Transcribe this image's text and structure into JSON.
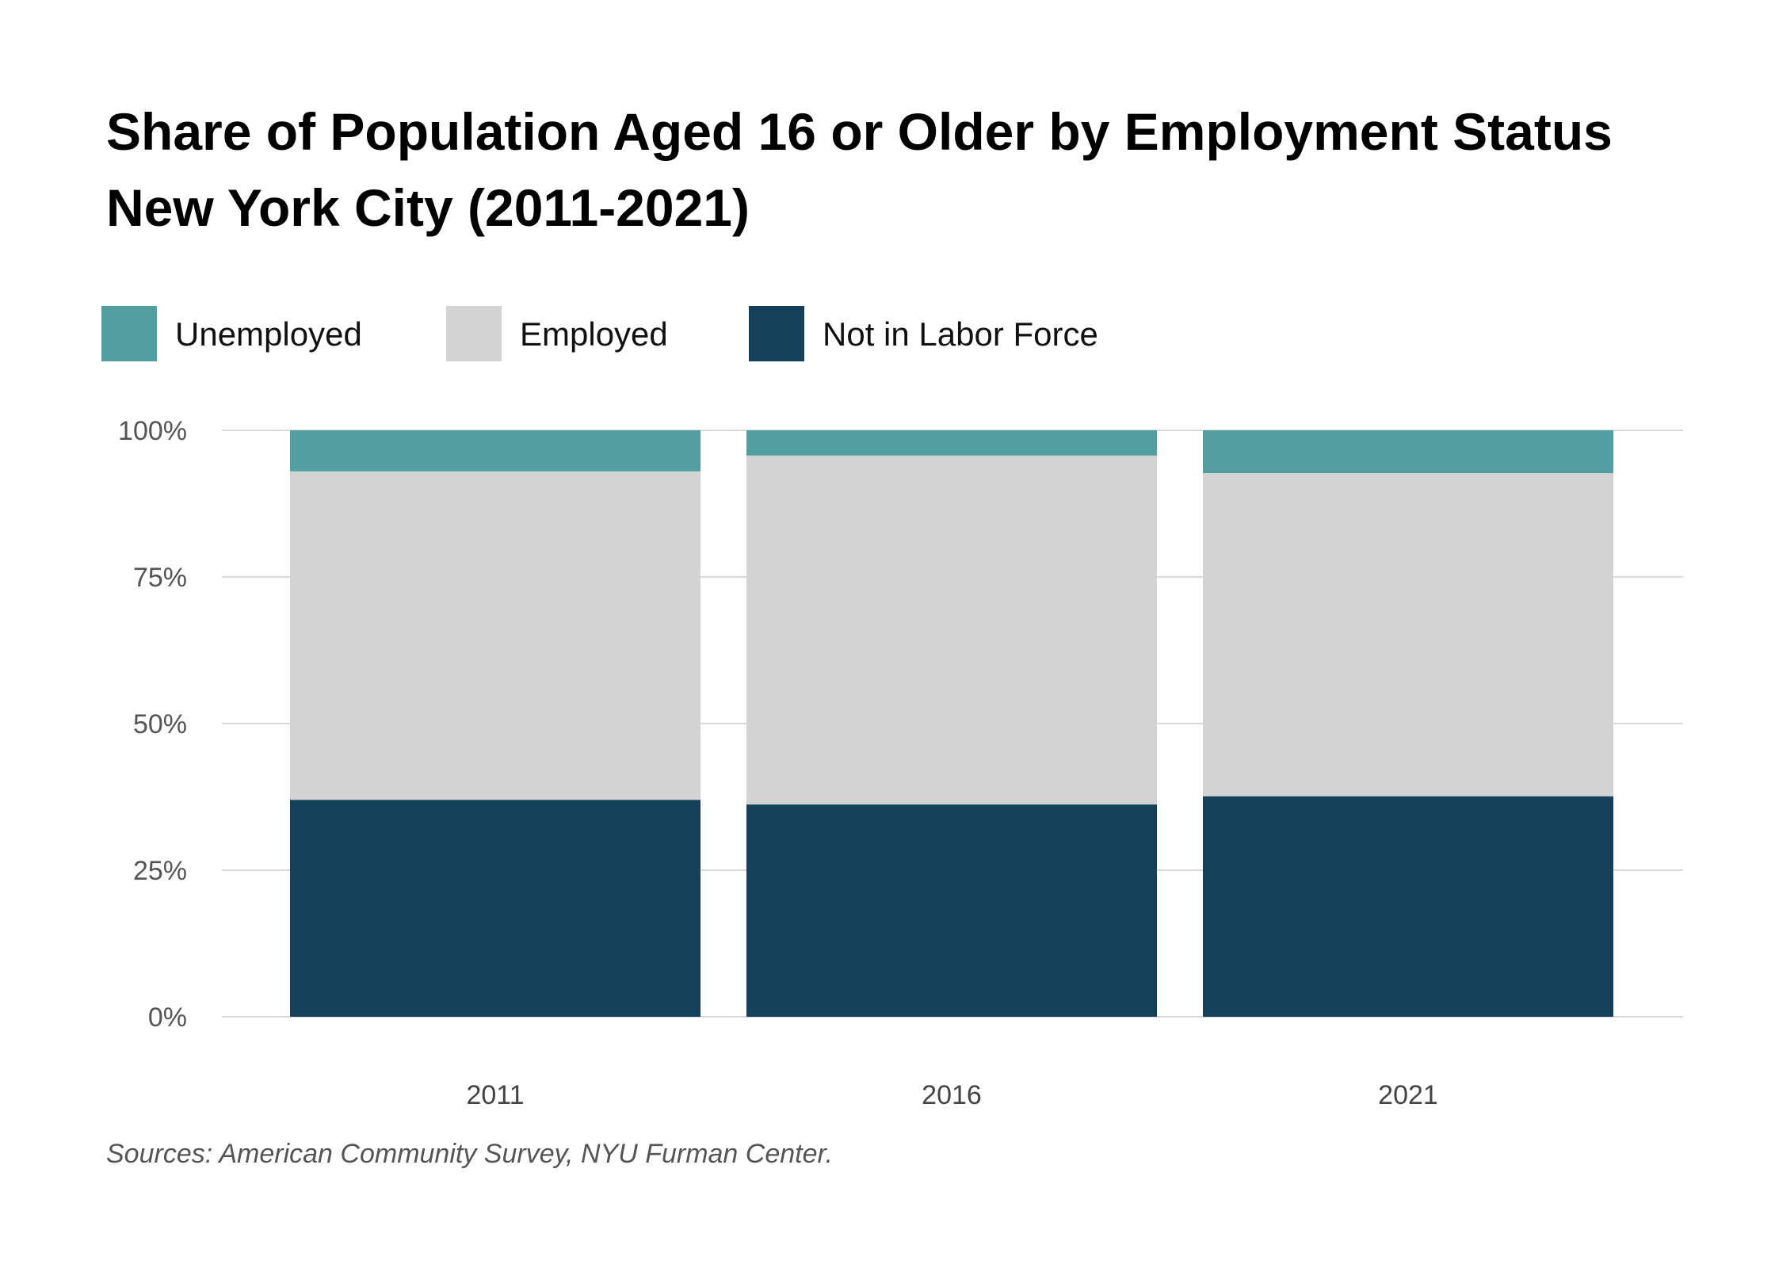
{
  "chart_data": {
    "type": "bar",
    "stacked": true,
    "title_lines": [
      "Share of Population Aged 16 or Older by Employment Status",
      "New York City (2011-2021)"
    ],
    "categories": [
      "2011",
      "2016",
      "2021"
    ],
    "series": [
      {
        "name": "Not in Labor Force",
        "color": "#15405a",
        "values": [
          37,
          36.2,
          37.6
        ]
      },
      {
        "name": "Employed",
        "color": "#d3d3d3",
        "values": [
          56,
          59.5,
          55.1
        ]
      },
      {
        "name": "Unemployed",
        "color": "#559e9f",
        "values": [
          7,
          4.3,
          7.3
        ]
      }
    ],
    "legend_order": [
      {
        "name": "Unemployed",
        "color": "#559e9f"
      },
      {
        "name": "Employed",
        "color": "#d3d3d3"
      },
      {
        "name": "Not in Labor Force",
        "color": "#15405a"
      }
    ],
    "y_ticks": [
      {
        "value": 0,
        "label": "0%"
      },
      {
        "value": 25,
        "label": "25%"
      },
      {
        "value": 50,
        "label": "50%"
      },
      {
        "value": 75,
        "label": "75%"
      },
      {
        "value": 100,
        "label": "100%"
      }
    ],
    "ylim": [
      0,
      100
    ],
    "grid": true,
    "legend_position": "top-left",
    "source": "Sources: American Community Survey, NYU Furman Center."
  }
}
